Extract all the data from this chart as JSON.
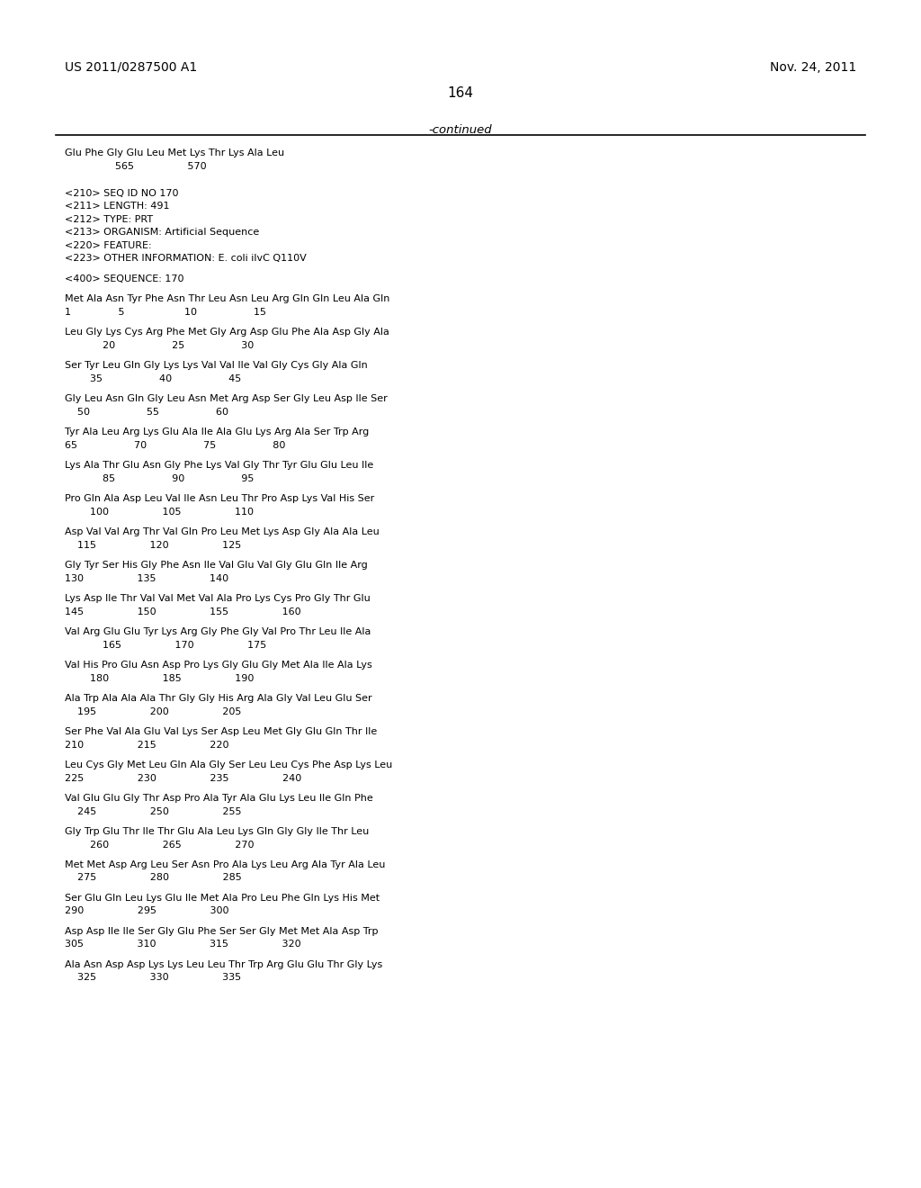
{
  "header_left": "US 2011/0287500 A1",
  "header_right": "Nov. 24, 2011",
  "page_number": "164",
  "continued_text": "-continued",
  "background_color": "#ffffff",
  "text_color": "#000000",
  "content_lines": [
    "Glu Phe Gly Glu Leu Met Lys Thr Lys Ala Leu",
    "                565                 570",
    "",
    "",
    "<210> SEQ ID NO 170",
    "<211> LENGTH: 491",
    "<212> TYPE: PRT",
    "<213> ORGANISM: Artificial Sequence",
    "<220> FEATURE:",
    "<223> OTHER INFORMATION: E. coli ilvC Q110V",
    "",
    "<400> SEQUENCE: 170",
    "",
    "Met Ala Asn Tyr Phe Asn Thr Leu Asn Leu Arg Gln Gln Leu Ala Gln",
    "1               5                   10                  15",
    "",
    "Leu Gly Lys Cys Arg Phe Met Gly Arg Asp Glu Phe Ala Asp Gly Ala",
    "            20                  25                  30",
    "",
    "Ser Tyr Leu Gln Gly Lys Lys Val Val Ile Val Gly Cys Gly Ala Gln",
    "        35                  40                  45",
    "",
    "Gly Leu Asn Gln Gly Leu Asn Met Arg Asp Ser Gly Leu Asp Ile Ser",
    "    50                  55                  60",
    "",
    "Tyr Ala Leu Arg Lys Glu Ala Ile Ala Glu Lys Arg Ala Ser Trp Arg",
    "65                  70                  75                  80",
    "",
    "Lys Ala Thr Glu Asn Gly Phe Lys Val Gly Thr Tyr Glu Glu Leu Ile",
    "            85                  90                  95",
    "",
    "Pro Gln Ala Asp Leu Val Ile Asn Leu Thr Pro Asp Lys Val His Ser",
    "        100                 105                 110",
    "",
    "Asp Val Val Arg Thr Val Gln Pro Leu Met Lys Asp Gly Ala Ala Leu",
    "    115                 120                 125",
    "",
    "Gly Tyr Ser His Gly Phe Asn Ile Val Glu Val Gly Glu Gln Ile Arg",
    "130                 135                 140",
    "",
    "Lys Asp Ile Thr Val Val Met Val Ala Pro Lys Cys Pro Gly Thr Glu",
    "145                 150                 155                 160",
    "",
    "Val Arg Glu Glu Tyr Lys Arg Gly Phe Gly Val Pro Thr Leu Ile Ala",
    "            165                 170                 175",
    "",
    "Val His Pro Glu Asn Asp Pro Lys Gly Glu Gly Met Ala Ile Ala Lys",
    "        180                 185                 190",
    "",
    "Ala Trp Ala Ala Ala Thr Gly Gly His Arg Ala Gly Val Leu Glu Ser",
    "    195                 200                 205",
    "",
    "Ser Phe Val Ala Glu Val Lys Ser Asp Leu Met Gly Glu Gln Thr Ile",
    "210                 215                 220",
    "",
    "Leu Cys Gly Met Leu Gln Ala Gly Ser Leu Leu Cys Phe Asp Lys Leu",
    "225                 230                 235                 240",
    "",
    "Val Glu Glu Gly Thr Asp Pro Ala Tyr Ala Glu Lys Leu Ile Gln Phe",
    "    245                 250                 255",
    "",
    "Gly Trp Glu Thr Ile Thr Glu Ala Leu Lys Gln Gly Gly Ile Thr Leu",
    "        260                 265                 270",
    "",
    "Met Met Asp Arg Leu Ser Asn Pro Ala Lys Leu Arg Ala Tyr Ala Leu",
    "    275                 280                 285",
    "",
    "Ser Glu Gln Leu Lys Glu Ile Met Ala Pro Leu Phe Gln Lys His Met",
    "290                 295                 300",
    "",
    "Asp Asp Ile Ile Ser Gly Glu Phe Ser Ser Gly Met Met Ala Asp Trp",
    "305                 310                 315                 320",
    "",
    "Ala Asn Asp Asp Lys Lys Leu Leu Thr Trp Arg Glu Glu Thr Gly Lys",
    "    325                 330                 335"
  ]
}
